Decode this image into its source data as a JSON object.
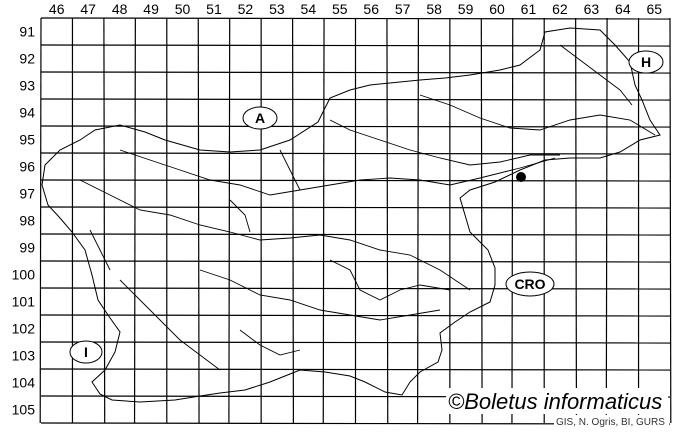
{
  "grid": {
    "columns": [
      "46",
      "47",
      "48",
      "49",
      "50",
      "51",
      "52",
      "53",
      "54",
      "55",
      "56",
      "57",
      "58",
      "59",
      "60",
      "61",
      "62",
      "63",
      "64",
      "65"
    ],
    "rows": [
      "91",
      "92",
      "93",
      "94",
      "95",
      "96",
      "97",
      "98",
      "99",
      "100",
      "101",
      "102",
      "103",
      "104",
      "105"
    ]
  },
  "regions": [
    {
      "label": "A"
    },
    {
      "label": "H"
    },
    {
      "label": "CRO"
    },
    {
      "label": "I"
    }
  ],
  "records": [
    {
      "column": "61",
      "row": "96"
    }
  ],
  "credit": {
    "title": "©Boletus informaticus",
    "source": "GIS, N. Ogris, BI, GURS"
  },
  "colors": {
    "lines": "#000000",
    "background": "#ffffff",
    "marker": "#000000"
  }
}
